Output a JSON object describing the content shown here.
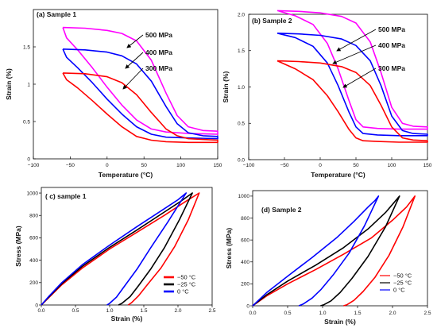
{
  "chart_data": [
    {
      "id": "a",
      "type": "line",
      "title": "(a) Sample 1",
      "xlabel": "Temperature (°C)",
      "ylabel": "Strain (%)",
      "xlim": [
        -100,
        150
      ],
      "ylim": [
        0,
        2
      ],
      "xticks": [
        "−100",
        "−50",
        "0",
        "50",
        "100",
        "150"
      ],
      "yticks": [
        "0",
        "0.5",
        "1",
        "1.5"
      ],
      "series": [
        {
          "name": "500 MPa",
          "color": "#ff00ff",
          "upper": [
            [
              -60,
              1.76
            ],
            [
              -30,
              1.75
            ],
            [
              0,
              1.72
            ],
            [
              20,
              1.68
            ],
            [
              40,
              1.58
            ],
            [
              60,
              1.32
            ],
            [
              80,
              0.88
            ],
            [
              95,
              0.58
            ],
            [
              110,
              0.43
            ],
            [
              130,
              0.38
            ],
            [
              150,
              0.37
            ]
          ],
          "lower": [
            [
              150,
              0.33
            ],
            [
              110,
              0.34
            ],
            [
              80,
              0.36
            ],
            [
              60,
              0.4
            ],
            [
              40,
              0.52
            ],
            [
              20,
              0.72
            ],
            [
              0,
              0.96
            ],
            [
              -20,
              1.22
            ],
            [
              -40,
              1.46
            ],
            [
              -55,
              1.62
            ],
            [
              -60,
              1.76
            ]
          ]
        },
        {
          "name": "400 MPa",
          "color": "#0000ff",
          "upper": [
            [
              -60,
              1.47
            ],
            [
              -30,
              1.46
            ],
            [
              0,
              1.43
            ],
            [
              20,
              1.38
            ],
            [
              40,
              1.27
            ],
            [
              60,
              1.04
            ],
            [
              80,
              0.7
            ],
            [
              95,
              0.47
            ],
            [
              110,
              0.35
            ],
            [
              130,
              0.31
            ],
            [
              150,
              0.3
            ]
          ],
          "lower": [
            [
              150,
              0.27
            ],
            [
              110,
              0.28
            ],
            [
              80,
              0.29
            ],
            [
              60,
              0.33
            ],
            [
              40,
              0.43
            ],
            [
              20,
              0.6
            ],
            [
              0,
              0.8
            ],
            [
              -20,
              1.02
            ],
            [
              -40,
              1.22
            ],
            [
              -55,
              1.36
            ],
            [
              -60,
              1.47
            ]
          ]
        },
        {
          "name": "300 MPa",
          "color": "#ff0000",
          "upper": [
            [
              -60,
              1.15
            ],
            [
              -30,
              1.14
            ],
            [
              0,
              1.1
            ],
            [
              20,
              1.02
            ],
            [
              40,
              0.86
            ],
            [
              60,
              0.62
            ],
            [
              80,
              0.4
            ],
            [
              95,
              0.31
            ],
            [
              110,
              0.27
            ],
            [
              130,
              0.26
            ],
            [
              150,
              0.25
            ]
          ],
          "lower": [
            [
              150,
              0.22
            ],
            [
              110,
              0.22
            ],
            [
              80,
              0.23
            ],
            [
              60,
              0.25
            ],
            [
              40,
              0.3
            ],
            [
              20,
              0.43
            ],
            [
              0,
              0.6
            ],
            [
              -20,
              0.78
            ],
            [
              -40,
              0.95
            ],
            [
              -55,
              1.06
            ],
            [
              -60,
              1.15
            ]
          ]
        }
      ],
      "annotations": [
        "500 MPa",
        "400 MPa",
        "300 MPa"
      ]
    },
    {
      "id": "b",
      "type": "line",
      "title": "(b) Sample 2",
      "xlabel": "Temperature (°C)",
      "ylabel": "Strain (%)",
      "xlim": [
        -100,
        150
      ],
      "ylim": [
        0,
        2
      ],
      "xticks": [
        "−100",
        "−50",
        "0",
        "50",
        "100",
        "150"
      ],
      "yticks": [
        "0.0",
        "0.5",
        "1.0",
        "1.5",
        "2.0"
      ],
      "series": [
        {
          "name": "500 MPa",
          "color": "#ff00ff",
          "upper": [
            [
              -60,
              2.05
            ],
            [
              -30,
              2.04
            ],
            [
              0,
              2.02
            ],
            [
              30,
              1.97
            ],
            [
              50,
              1.88
            ],
            [
              70,
              1.62
            ],
            [
              85,
              1.2
            ],
            [
              100,
              0.72
            ],
            [
              115,
              0.5
            ],
            [
              130,
              0.46
            ],
            [
              150,
              0.45
            ]
          ],
          "lower": [
            [
              150,
              0.42
            ],
            [
              110,
              0.42
            ],
            [
              80,
              0.43
            ],
            [
              60,
              0.45
            ],
            [
              50,
              0.55
            ],
            [
              40,
              0.82
            ],
            [
              25,
              1.25
            ],
            [
              10,
              1.6
            ],
            [
              -10,
              1.86
            ],
            [
              -35,
              1.98
            ],
            [
              -60,
              2.05
            ]
          ]
        },
        {
          "name": "400 MPa",
          "color": "#0000ff",
          "upper": [
            [
              -60,
              1.74
            ],
            [
              -30,
              1.73
            ],
            [
              0,
              1.71
            ],
            [
              30,
              1.66
            ],
            [
              50,
              1.57
            ],
            [
              70,
              1.36
            ],
            [
              85,
              1.02
            ],
            [
              100,
              0.6
            ],
            [
              115,
              0.4
            ],
            [
              130,
              0.36
            ],
            [
              150,
              0.35
            ]
          ],
          "lower": [
            [
              150,
              0.33
            ],
            [
              110,
              0.33
            ],
            [
              80,
              0.34
            ],
            [
              60,
              0.36
            ],
            [
              50,
              0.45
            ],
            [
              40,
              0.66
            ],
            [
              25,
              1.02
            ],
            [
              10,
              1.33
            ],
            [
              -10,
              1.56
            ],
            [
              -35,
              1.68
            ],
            [
              -60,
              1.74
            ]
          ]
        },
        {
          "name": "300 MPa",
          "color": "#ff0000",
          "upper": [
            [
              -60,
              1.36
            ],
            [
              -30,
              1.35
            ],
            [
              0,
              1.33
            ],
            [
              30,
              1.28
            ],
            [
              50,
              1.2
            ],
            [
              70,
              1.02
            ],
            [
              85,
              0.75
            ],
            [
              100,
              0.45
            ],
            [
              115,
              0.3
            ],
            [
              130,
              0.27
            ],
            [
              150,
              0.26
            ]
          ],
          "lower": [
            [
              150,
              0.24
            ],
            [
              110,
              0.24
            ],
            [
              80,
              0.25
            ],
            [
              60,
              0.26
            ],
            [
              50,
              0.3
            ],
            [
              40,
              0.42
            ],
            [
              25,
              0.66
            ],
            [
              10,
              0.88
            ],
            [
              -10,
              1.1
            ],
            [
              -35,
              1.25
            ],
            [
              -60,
              1.36
            ]
          ]
        }
      ],
      "annotations": [
        "500 MPa",
        "400 MPa",
        "300 MPa"
      ]
    },
    {
      "id": "c",
      "type": "line",
      "title": "( c) sample 1",
      "xlabel": "Strain (%)",
      "ylabel": "Stress (MPa)",
      "xlim": [
        0,
        2.5
      ],
      "ylim": [
        0,
        1050
      ],
      "xticks": [
        "0.0",
        "0.5",
        "1.0",
        "1.5",
        "2.0",
        "2.5"
      ],
      "yticks": [
        "0",
        "200",
        "400",
        "600",
        "800",
        "1000"
      ],
      "series": [
        {
          "name": "−50 °C",
          "color": "#ff0000",
          "loading": [
            [
              0,
              0
            ],
            [
              0.1,
              60
            ],
            [
              0.3,
              180
            ],
            [
              0.6,
              330
            ],
            [
              1.0,
              500
            ],
            [
              1.4,
              650
            ],
            [
              1.8,
              800
            ],
            [
              2.1,
              920
            ],
            [
              2.31,
              1000
            ]
          ],
          "unloading": [
            [
              2.31,
              1000
            ],
            [
              2.15,
              760
            ],
            [
              1.95,
              520
            ],
            [
              1.75,
              330
            ],
            [
              1.55,
              180
            ],
            [
              1.42,
              80
            ],
            [
              1.32,
              20
            ],
            [
              1.27,
              0
            ]
          ]
        },
        {
          "name": "−25 °C",
          "color": "#000000",
          "loading": [
            [
              0,
              0
            ],
            [
              0.1,
              65
            ],
            [
              0.3,
              190
            ],
            [
              0.6,
              345
            ],
            [
              1.0,
              515
            ],
            [
              1.4,
              670
            ],
            [
              1.8,
              830
            ],
            [
              2.05,
              930
            ],
            [
              2.21,
              1000
            ]
          ],
          "unloading": [
            [
              2.21,
              1000
            ],
            [
              2.02,
              760
            ],
            [
              1.8,
              510
            ],
            [
              1.6,
              320
            ],
            [
              1.42,
              170
            ],
            [
              1.3,
              75
            ],
            [
              1.18,
              15
            ],
            [
              1.13,
              0
            ]
          ]
        },
        {
          "name": "0 °C",
          "color": "#0000ff",
          "loading": [
            [
              0,
              0
            ],
            [
              0.1,
              70
            ],
            [
              0.3,
              200
            ],
            [
              0.6,
              360
            ],
            [
              1.0,
              535
            ],
            [
              1.4,
              700
            ],
            [
              1.8,
              860
            ],
            [
              2.0,
              940
            ],
            [
              2.12,
              1000
            ]
          ],
          "unloading": [
            [
              2.12,
              1000
            ],
            [
              1.85,
              740
            ],
            [
              1.6,
              510
            ],
            [
              1.4,
              320
            ],
            [
              1.22,
              170
            ],
            [
              1.1,
              70
            ],
            [
              1.0,
              15
            ],
            [
              0.96,
              0
            ]
          ]
        }
      ]
    },
    {
      "id": "d",
      "type": "line",
      "title": "(d) Sample 2",
      "xlabel": "Strain (%)",
      "ylabel": "Stress (MPa)",
      "xlim": [
        0,
        2.5
      ],
      "ylim": [
        0,
        1050
      ],
      "xticks": [
        "0.0",
        "0.5",
        "1.0",
        "1.5",
        "2.0",
        "2.5"
      ],
      "yticks": [
        "0",
        "200",
        "400",
        "600",
        "800",
        "1000"
      ],
      "series": [
        {
          "name": "−50 °C",
          "color": "#ff0000",
          "loading": [
            [
              0,
              0
            ],
            [
              0.2,
              90
            ],
            [
              0.5,
              200
            ],
            [
              0.9,
              330
            ],
            [
              1.3,
              470
            ],
            [
              1.7,
              620
            ],
            [
              2.0,
              780
            ],
            [
              2.2,
              900
            ],
            [
              2.32,
              1000
            ]
          ],
          "unloading": [
            [
              2.32,
              1000
            ],
            [
              2.15,
              720
            ],
            [
              1.95,
              460
            ],
            [
              1.75,
              260
            ],
            [
              1.58,
              130
            ],
            [
              1.45,
              50
            ],
            [
              1.35,
              10
            ],
            [
              1.3,
              0
            ]
          ]
        },
        {
          "name": "−25 °C",
          "color": "#000000",
          "loading": [
            [
              0,
              0
            ],
            [
              0.2,
              100
            ],
            [
              0.5,
              225
            ],
            [
              0.9,
              370
            ],
            [
              1.3,
              530
            ],
            [
              1.65,
              700
            ],
            [
              1.9,
              850
            ],
            [
              2.02,
              940
            ],
            [
              2.1,
              1000
            ]
          ],
          "unloading": [
            [
              2.1,
              1000
            ],
            [
              1.9,
              720
            ],
            [
              1.65,
              450
            ],
            [
              1.42,
              250
            ],
            [
              1.25,
              120
            ],
            [
              1.12,
              45
            ],
            [
              1.02,
              10
            ],
            [
              0.97,
              0
            ]
          ]
        },
        {
          "name": "0 °C",
          "color": "#0000ff",
          "loading": [
            [
              0,
              0
            ],
            [
              0.2,
              120
            ],
            [
              0.5,
              270
            ],
            [
              0.85,
              440
            ],
            [
              1.2,
              620
            ],
            [
              1.45,
              770
            ],
            [
              1.65,
              900
            ],
            [
              1.75,
              960
            ],
            [
              1.8,
              1000
            ]
          ],
          "unloading": [
            [
              1.8,
              1000
            ],
            [
              1.6,
              730
            ],
            [
              1.38,
              480
            ],
            [
              1.15,
              280
            ],
            [
              0.98,
              150
            ],
            [
              0.85,
              70
            ],
            [
              0.72,
              15
            ],
            [
              0.66,
              0
            ]
          ]
        }
      ]
    }
  ]
}
